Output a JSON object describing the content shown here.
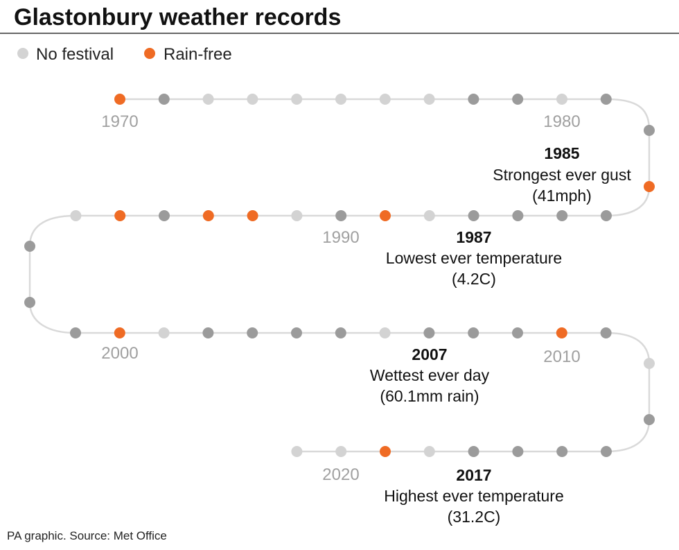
{
  "title": "Glastonbury weather records",
  "legend": [
    {
      "label": "No festival",
      "status": "no_festival"
    },
    {
      "label": "Rain-free",
      "status": "rain_free"
    }
  ],
  "colors": {
    "rain_free": "#ef6b24",
    "no_festival": "#d3d3d3",
    "festival": "#9b9b9b",
    "line": "#d9d9d9"
  },
  "decade_labels": [
    "1970",
    "1980",
    "1990",
    "2000",
    "2010",
    "2020"
  ],
  "years": [
    {
      "year": 1970,
      "status": "rain_free"
    },
    {
      "year": 1971,
      "status": "festival"
    },
    {
      "year": 1972,
      "status": "no_festival"
    },
    {
      "year": 1973,
      "status": "no_festival"
    },
    {
      "year": 1974,
      "status": "no_festival"
    },
    {
      "year": 1975,
      "status": "no_festival"
    },
    {
      "year": 1976,
      "status": "no_festival"
    },
    {
      "year": 1977,
      "status": "no_festival"
    },
    {
      "year": 1978,
      "status": "festival"
    },
    {
      "year": 1979,
      "status": "festival"
    },
    {
      "year": 1980,
      "status": "no_festival"
    },
    {
      "year": 1981,
      "status": "festival"
    },
    {
      "year": 1982,
      "status": "festival"
    },
    {
      "year": 1983,
      "status": "rain_free"
    },
    {
      "year": 1984,
      "status": "festival"
    },
    {
      "year": 1985,
      "status": "festival"
    },
    {
      "year": 1986,
      "status": "festival"
    },
    {
      "year": 1987,
      "status": "festival"
    },
    {
      "year": 1988,
      "status": "no_festival"
    },
    {
      "year": 1989,
      "status": "rain_free"
    },
    {
      "year": 1990,
      "status": "festival"
    },
    {
      "year": 1991,
      "status": "no_festival"
    },
    {
      "year": 1992,
      "status": "rain_free"
    },
    {
      "year": 1993,
      "status": "rain_free"
    },
    {
      "year": 1994,
      "status": "festival"
    },
    {
      "year": 1995,
      "status": "rain_free"
    },
    {
      "year": 1996,
      "status": "no_festival"
    },
    {
      "year": 1997,
      "status": "festival"
    },
    {
      "year": 1998,
      "status": "festival"
    },
    {
      "year": 1999,
      "status": "festival"
    },
    {
      "year": 2000,
      "status": "rain_free"
    },
    {
      "year": 2001,
      "status": "no_festival"
    },
    {
      "year": 2002,
      "status": "festival"
    },
    {
      "year": 2003,
      "status": "festival"
    },
    {
      "year": 2004,
      "status": "festival"
    },
    {
      "year": 2005,
      "status": "festival"
    },
    {
      "year": 2006,
      "status": "no_festival"
    },
    {
      "year": 2007,
      "status": "festival"
    },
    {
      "year": 2008,
      "status": "festival"
    },
    {
      "year": 2009,
      "status": "festival"
    },
    {
      "year": 2010,
      "status": "rain_free"
    },
    {
      "year": 2011,
      "status": "festival"
    },
    {
      "year": 2012,
      "status": "no_festival"
    },
    {
      "year": 2013,
      "status": "festival"
    },
    {
      "year": 2014,
      "status": "festival"
    },
    {
      "year": 2015,
      "status": "festival"
    },
    {
      "year": 2016,
      "status": "festival"
    },
    {
      "year": 2017,
      "status": "festival"
    },
    {
      "year": 2018,
      "status": "no_festival"
    },
    {
      "year": 2019,
      "status": "rain_free"
    },
    {
      "year": 2020,
      "status": "no_festival"
    },
    {
      "year": 2021,
      "status": "no_festival"
    }
  ],
  "annotations": [
    {
      "year": "1985",
      "line1": "Strongest ever gust",
      "line2": "(41mph)"
    },
    {
      "year": "1987",
      "line1": "Lowest ever temperature",
      "line2": "(4.2C)"
    },
    {
      "year": "2007",
      "line1": "Wettest ever day",
      "line2": "(60.1mm rain)"
    },
    {
      "year": "2017",
      "line1": "Highest ever temperature",
      "line2": "(31.2C)"
    }
  ],
  "footer": "PA graphic. Source: Met Office"
}
